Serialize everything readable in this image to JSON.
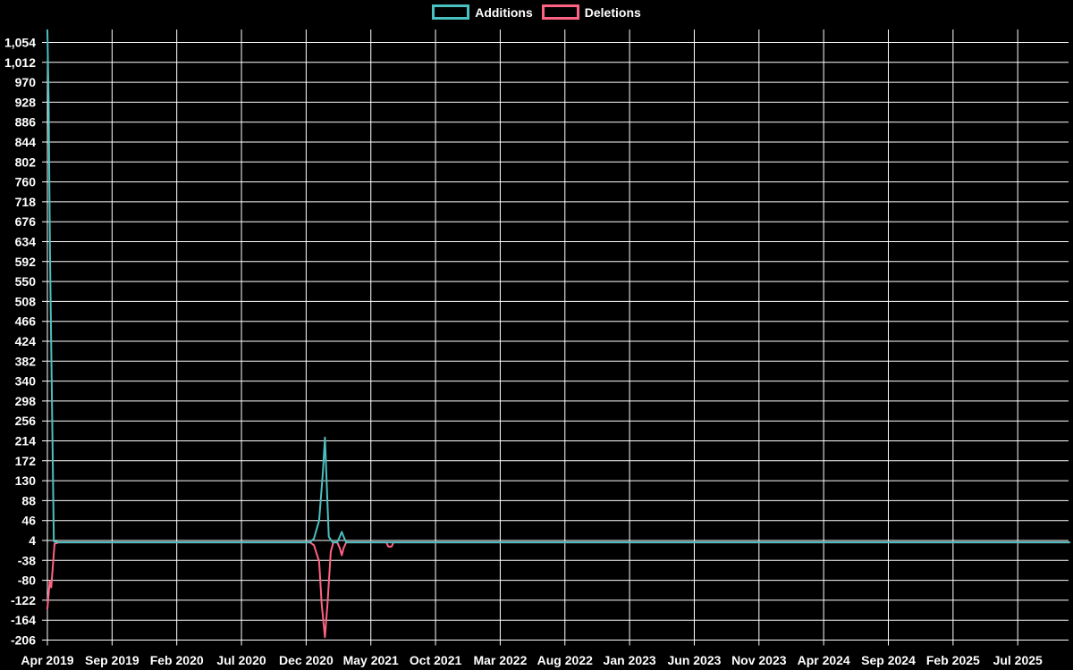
{
  "chart_data": {
    "type": "line",
    "title": "",
    "description": "Weekly code additions/deletions history chart on black background; both series flat at 0 except spikes in Apr 2019 and Jan-Mar 2021 and a tiny deletion blip in mid 2021.",
    "background_color": "#000000",
    "grid_color": "#ffffff",
    "text_color": "#ffffff",
    "legend_position": "top-center",
    "legend": [
      {
        "label": "Additions",
        "color": "#4bc0c0"
      },
      {
        "label": "Deletions",
        "color": "#ff6384"
      }
    ],
    "x_axis": {
      "label": "",
      "tick_labels": [
        "Apr 2019",
        "Sep 2019",
        "Feb 2020",
        "Jul 2020",
        "Dec 2020",
        "May 2021",
        "Oct 2021",
        "Mar 2022",
        "Aug 2022",
        "Jan 2023",
        "Jun 2023",
        "Nov 2023",
        "Apr 2024",
        "Sep 2024",
        "Feb 2025",
        "Jul 2025"
      ],
      "months_per_tick": 5,
      "domain_months": [
        0,
        79
      ],
      "grid": true
    },
    "y_axis": {
      "label": "",
      "min": -206,
      "max": 1054,
      "tick_step": 42,
      "tick_labels": [
        "1,054",
        "1,012",
        "970",
        "928",
        "886",
        "844",
        "802",
        "760",
        "718",
        "676",
        "634",
        "592",
        "550",
        "508",
        "466",
        "424",
        "382",
        "340",
        "298",
        "256",
        "214",
        "172",
        "130",
        "88",
        "46",
        "4",
        "-38",
        "-80",
        "-122",
        "-164",
        "-206"
      ],
      "grid": true
    },
    "series": [
      {
        "name": "Additions",
        "color": "#4bc0c0",
        "peak_value": 1080,
        "points_month_value": [
          [
            0,
            1080
          ],
          [
            0.1,
            930
          ],
          [
            0.2,
            610
          ],
          [
            0.5,
            2
          ],
          [
            0.9,
            0
          ],
          [
            5,
            0
          ],
          [
            10,
            0
          ],
          [
            15,
            0
          ],
          [
            20.3,
            0
          ],
          [
            20.6,
            8
          ],
          [
            21.0,
            46
          ],
          [
            21.3,
            150
          ],
          [
            21.45,
            221
          ],
          [
            21.75,
            12
          ],
          [
            22.05,
            0
          ],
          [
            22.4,
            0
          ],
          [
            22.6,
            12
          ],
          [
            22.75,
            22
          ],
          [
            22.9,
            12
          ],
          [
            23.1,
            0
          ],
          [
            26,
            0
          ],
          [
            30,
            0
          ],
          [
            40,
            0
          ],
          [
            50,
            0
          ],
          [
            60,
            0
          ],
          [
            70,
            0
          ],
          [
            79,
            0
          ]
        ]
      },
      {
        "name": "Deletions",
        "color": "#ff6384",
        "min_value": -200,
        "points_month_value": [
          [
            0,
            -140
          ],
          [
            0.18,
            -82
          ],
          [
            0.3,
            -95
          ],
          [
            0.55,
            -3
          ],
          [
            0.9,
            0
          ],
          [
            5,
            0
          ],
          [
            10,
            0
          ],
          [
            15,
            0
          ],
          [
            20.3,
            0
          ],
          [
            20.6,
            -6
          ],
          [
            21.0,
            -40
          ],
          [
            21.2,
            -129
          ],
          [
            21.45,
            -200
          ],
          [
            21.65,
            -129
          ],
          [
            21.9,
            -20
          ],
          [
            22.1,
            0
          ],
          [
            22.4,
            0
          ],
          [
            22.6,
            -12
          ],
          [
            22.75,
            -27
          ],
          [
            22.9,
            -12
          ],
          [
            23.1,
            0
          ],
          [
            26.2,
            0
          ],
          [
            26.35,
            -9
          ],
          [
            26.6,
            -9
          ],
          [
            26.75,
            0
          ],
          [
            30,
            0
          ],
          [
            40,
            0
          ],
          [
            50,
            0
          ],
          [
            60,
            0
          ],
          [
            70,
            0
          ],
          [
            79,
            0
          ]
        ]
      }
    ]
  }
}
